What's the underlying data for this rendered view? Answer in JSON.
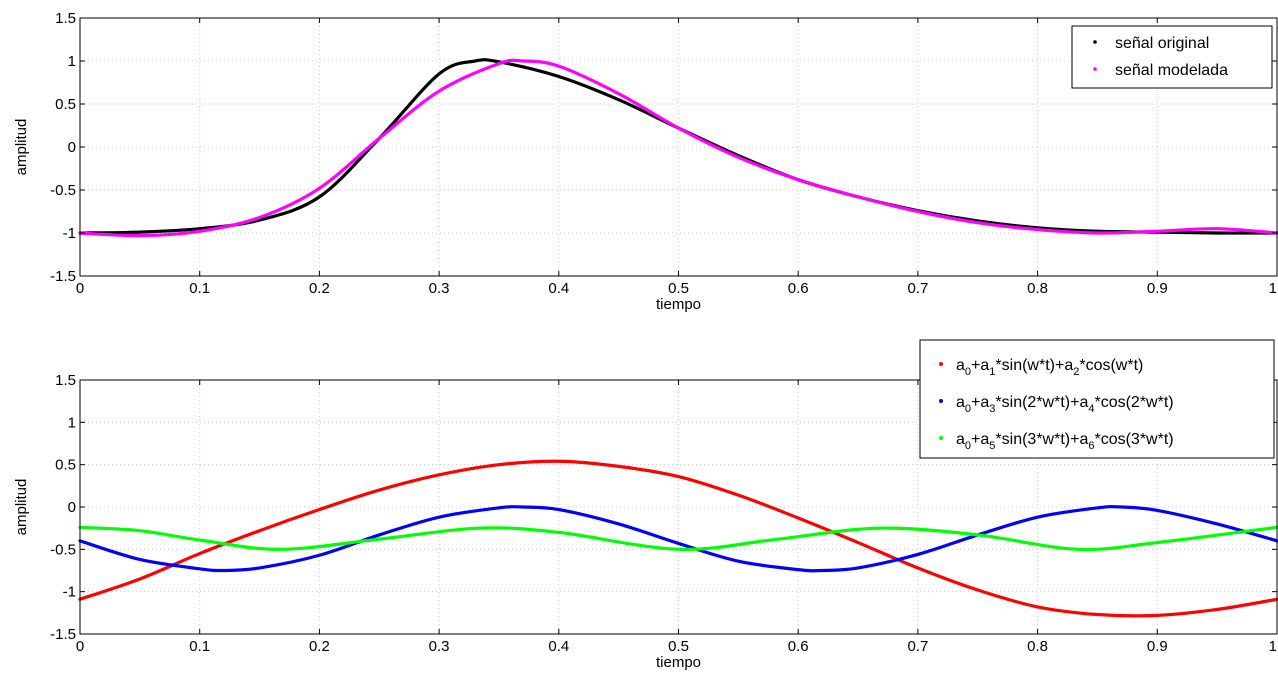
{
  "chart_data": [
    {
      "type": "line",
      "xlabel": "tiempo",
      "ylabel": "amplitud",
      "xlim": [
        0,
        1
      ],
      "ylim": [
        -1.5,
        1.5
      ],
      "xticks": [
        0,
        0.1,
        0.2,
        0.3,
        0.4,
        0.5,
        0.6,
        0.7,
        0.8,
        0.9,
        1
      ],
      "xtick_labels": [
        "0",
        "0.1",
        "0.2",
        "0.3",
        "0.4",
        "0.5",
        "0.6",
        "0.7",
        "0.8",
        "0.9",
        "1"
      ],
      "yticks": [
        -1.5,
        -1,
        -0.5,
        0,
        0.5,
        1,
        1.5
      ],
      "ytick_labels": [
        "-1.5",
        "-1",
        "-0.5",
        "0",
        "0.5",
        "1",
        "1.5"
      ],
      "grid": true,
      "legend_position": "top-right",
      "series": [
        {
          "name": "señal original",
          "color": "#000000",
          "x": [
            0,
            0.05,
            0.1,
            0.15,
            0.2,
            0.25,
            0.3,
            0.33,
            0.35,
            0.4,
            0.45,
            0.5,
            0.55,
            0.6,
            0.65,
            0.7,
            0.75,
            0.8,
            0.85,
            0.9,
            0.95,
            1
          ],
          "y": [
            -1,
            -0.99,
            -0.95,
            -0.85,
            -0.58,
            0.1,
            0.85,
            1.0,
            0.99,
            0.82,
            0.55,
            0.22,
            -0.1,
            -0.38,
            -0.58,
            -0.74,
            -0.86,
            -0.94,
            -0.98,
            -0.99,
            -1,
            -1
          ]
        },
        {
          "name": "señal modelada",
          "color": "#ff00ff",
          "x": [
            0,
            0.05,
            0.1,
            0.15,
            0.2,
            0.25,
            0.3,
            0.35,
            0.37,
            0.4,
            0.45,
            0.5,
            0.55,
            0.6,
            0.65,
            0.7,
            0.75,
            0.8,
            0.85,
            0.9,
            0.95,
            1
          ],
          "y": [
            -1,
            -1.03,
            -0.98,
            -0.82,
            -0.48,
            0.1,
            0.65,
            0.97,
            1.0,
            0.94,
            0.62,
            0.22,
            -0.12,
            -0.38,
            -0.58,
            -0.75,
            -0.88,
            -0.96,
            -1.0,
            -0.98,
            -0.95,
            -1
          ]
        }
      ]
    },
    {
      "type": "line",
      "xlabel": "tiempo",
      "ylabel": "amplitud",
      "xlim": [
        0,
        1
      ],
      "ylim": [
        -1.5,
        1.5
      ],
      "xticks": [
        0,
        0.1,
        0.2,
        0.3,
        0.4,
        0.5,
        0.6,
        0.7,
        0.8,
        0.9,
        1
      ],
      "xtick_labels": [
        "0",
        "0.1",
        "0.2",
        "0.3",
        "0.4",
        "0.5",
        "0.6",
        "0.7",
        "0.8",
        "0.9",
        "1"
      ],
      "yticks": [
        -1.5,
        -1,
        -0.5,
        0,
        0.5,
        1,
        1.5
      ],
      "ytick_labels": [
        "-1.5",
        "-1",
        "-0.5",
        "0",
        "0.5",
        "1",
        "1.5"
      ],
      "grid": true,
      "legend_position": "top-right",
      "series": [
        {
          "name": "a0+a1*sin(w*t)+a2*cos(w*t)",
          "color": "#ff0000",
          "x": [
            0,
            0.05,
            0.1,
            0.15,
            0.2,
            0.25,
            0.3,
            0.35,
            0.4,
            0.45,
            0.5,
            0.55,
            0.6,
            0.65,
            0.7,
            0.75,
            0.8,
            0.85,
            0.9,
            0.95,
            1
          ],
          "y": [
            -1.09,
            -0.85,
            -0.55,
            -0.28,
            -0.03,
            0.2,
            0.38,
            0.5,
            0.54,
            0.48,
            0.36,
            0.14,
            -0.13,
            -0.42,
            -0.72,
            -0.98,
            -1.18,
            -1.27,
            -1.28,
            -1.21,
            -1.09
          ]
        },
        {
          "name": "a0+a3*sin(2*w*t)+a4*cos(2*w*t)",
          "color": "#0000ff",
          "x": [
            0,
            0.05,
            0.1,
            0.12,
            0.15,
            0.2,
            0.25,
            0.3,
            0.35,
            0.37,
            0.4,
            0.45,
            0.5,
            0.55,
            0.6,
            0.62,
            0.65,
            0.7,
            0.75,
            0.8,
            0.85,
            0.87,
            0.9,
            0.95,
            1
          ],
          "y": [
            -0.4,
            -0.62,
            -0.73,
            -0.75,
            -0.72,
            -0.57,
            -0.33,
            -0.12,
            -0.01,
            0,
            -0.03,
            -0.2,
            -0.43,
            -0.64,
            -0.74,
            -0.75,
            -0.72,
            -0.56,
            -0.33,
            -0.12,
            -0.01,
            0,
            -0.04,
            -0.2,
            -0.4
          ]
        },
        {
          "name": "a0+a5*sin(3*w*t)+a6*cos(3*w*t)",
          "color": "#00ff00",
          "x": [
            0,
            0.05,
            0.1,
            0.167,
            0.25,
            0.333,
            0.4,
            0.5,
            0.583,
            0.667,
            0.75,
            0.833,
            0.9,
            1
          ],
          "y": [
            -0.24,
            -0.28,
            -0.39,
            -0.5,
            -0.38,
            -0.25,
            -0.3,
            -0.5,
            -0.38,
            -0.25,
            -0.33,
            -0.5,
            -0.42,
            -0.24
          ]
        }
      ]
    }
  ],
  "legend_top": {
    "items": [
      {
        "label": "señal original",
        "color": "#000000"
      },
      {
        "label": "señal modelada",
        "color": "#ff00ff"
      }
    ]
  },
  "legend_bottom": {
    "items": [
      {
        "color": "#ff0000",
        "parts": [
          "a",
          "0",
          "+a",
          "1",
          "*sin(w*t)+a",
          "2",
          "*cos(w*t)"
        ]
      },
      {
        "color": "#0000ff",
        "parts": [
          "a",
          "0",
          "+a",
          "3",
          "*sin(2*w*t)+a",
          "4",
          "*cos(2*w*t)"
        ]
      },
      {
        "color": "#00ff00",
        "parts": [
          "a",
          "0",
          "+a",
          "5",
          "*sin(3*w*t)+a",
          "6",
          "*cos(3*w*t)"
        ]
      }
    ]
  }
}
